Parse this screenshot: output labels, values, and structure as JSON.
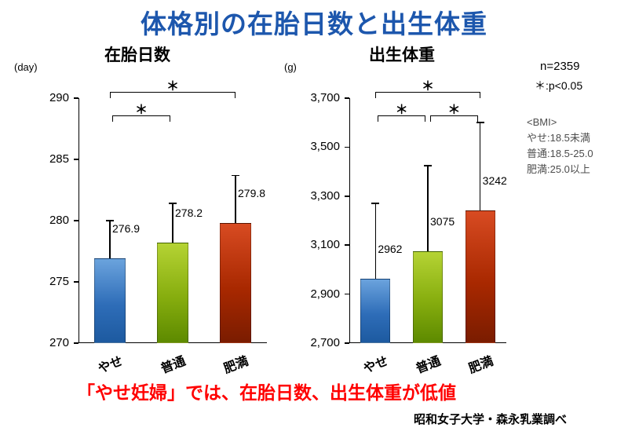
{
  "title": "体格別の在胎日数と出生体重",
  "colors": {
    "title": "#1d57ad",
    "conclusion": "#ff0000",
    "bar_blue": "#2e6db8",
    "bar_green": "#86ad0e",
    "bar_red": "#a82800"
  },
  "annotations": {
    "n": "n=2359",
    "p": "＊:p<0.05",
    "bmi_header": "<BMI>",
    "bmi_lines": [
      "やせ:18.5未満",
      "普通:18.5-25.0",
      "肥満:25.0以上"
    ]
  },
  "conclusion": "「やせ妊婦」では、在胎日数、出生体重が低値",
  "source": "昭和女子大学・森永乳業調べ",
  "chart_data": [
    {
      "type": "bar",
      "title": "在胎日数",
      "unit": "(day)",
      "ylabel": "(day)",
      "categories": [
        "やせ",
        "普通",
        "肥満"
      ],
      "values": [
        276.9,
        278.2,
        279.8
      ],
      "value_labels": [
        "276.9",
        "278.2",
        "279.8"
      ],
      "error_top": [
        280.0,
        281.4,
        283.7
      ],
      "ylim": [
        270,
        290
      ],
      "yticks": [
        270,
        275,
        280,
        285,
        290
      ],
      "ytick_labels": [
        "270",
        "275",
        "280",
        "285",
        "290"
      ],
      "grid": false,
      "legend": "none",
      "significance": [
        {
          "from": 0,
          "to": 1,
          "label": "＊"
        },
        {
          "from": 0,
          "to": 2,
          "label": "＊"
        }
      ]
    },
    {
      "type": "bar",
      "title": "出生体重",
      "unit": "(g)",
      "ylabel": "(g)",
      "categories": [
        "やせ",
        "普通",
        "肥満"
      ],
      "values": [
        2962,
        3075,
        3242
      ],
      "value_labels": [
        "2962",
        "3075",
        "3242"
      ],
      "error_top": [
        3270,
        3425,
        3600
      ],
      "ylim": [
        2700,
        3700
      ],
      "yticks": [
        2700,
        2900,
        3100,
        3300,
        3500,
        3700
      ],
      "ytick_labels": [
        "2,700",
        "2,900",
        "3,100",
        "3,300",
        "3,500",
        "3,700"
      ],
      "grid": false,
      "legend": "none",
      "significance": [
        {
          "from": 0,
          "to": 1,
          "label": "＊"
        },
        {
          "from": 1,
          "to": 2,
          "label": "＊"
        },
        {
          "from": 0,
          "to": 2,
          "label": "＊"
        }
      ]
    }
  ]
}
